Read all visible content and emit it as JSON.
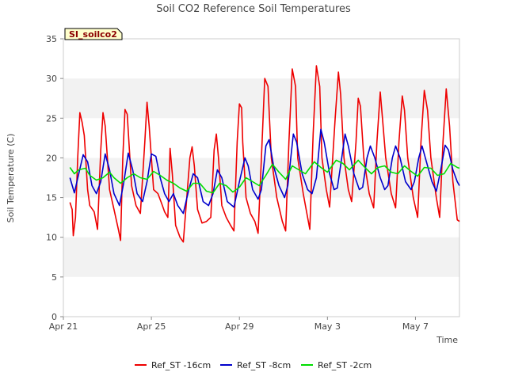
{
  "chart_data": {
    "type": "line",
    "title": "Soil CO2 Reference Soil Temperatures",
    "site_label": "SI_soilco2",
    "xlabel": "Time",
    "ylabel": "Soil Temperature (C)",
    "ylim": [
      0,
      35
    ],
    "yticks": [
      0,
      5,
      10,
      15,
      20,
      25,
      30,
      35
    ],
    "xlim": [
      0,
      18
    ],
    "xticks": [
      {
        "value": 0,
        "label": "Apr 21"
      },
      {
        "value": 4,
        "label": "Apr 25"
      },
      {
        "value": 8,
        "label": "Apr 29"
      },
      {
        "value": 12,
        "label": "May 3"
      },
      {
        "value": 16,
        "label": "May 7"
      }
    ],
    "grid": "horizontal alternating bands",
    "legend_position": "bottom",
    "series": [
      {
        "name": "Ref_ST -16cm",
        "color": "#ee0000",
        "points": [
          [
            0.3,
            14.4
          ],
          [
            0.4,
            13.5
          ],
          [
            0.45,
            10.2
          ],
          [
            0.55,
            12.5
          ],
          [
            0.65,
            20.0
          ],
          [
            0.75,
            25.7
          ],
          [
            0.85,
            24.5
          ],
          [
            0.95,
            22.8
          ],
          [
            1.1,
            16.0
          ],
          [
            1.2,
            14.0
          ],
          [
            1.4,
            13.2
          ],
          [
            1.55,
            11.0
          ],
          [
            1.7,
            21.0
          ],
          [
            1.8,
            25.7
          ],
          [
            1.9,
            24.0
          ],
          [
            2.1,
            16.0
          ],
          [
            2.3,
            13.5
          ],
          [
            2.5,
            11.0
          ],
          [
            2.6,
            9.6
          ],
          [
            2.7,
            20.0
          ],
          [
            2.8,
            26.1
          ],
          [
            2.9,
            25.5
          ],
          [
            3.1,
            16.5
          ],
          [
            3.3,
            14.0
          ],
          [
            3.5,
            13.0
          ],
          [
            3.7,
            22.0
          ],
          [
            3.8,
            27.0
          ],
          [
            3.9,
            24.0
          ],
          [
            4.1,
            16.0
          ],
          [
            4.3,
            15.5
          ],
          [
            4.5,
            14.0
          ],
          [
            4.6,
            13.2
          ],
          [
            4.75,
            12.5
          ],
          [
            4.85,
            21.2
          ],
          [
            4.95,
            18.0
          ],
          [
            5.1,
            11.5
          ],
          [
            5.3,
            10.0
          ],
          [
            5.45,
            9.4
          ],
          [
            5.55,
            13.0
          ],
          [
            5.75,
            20.0
          ],
          [
            5.85,
            21.4
          ],
          [
            5.95,
            19.0
          ],
          [
            6.1,
            13.5
          ],
          [
            6.3,
            11.8
          ],
          [
            6.5,
            12.0
          ],
          [
            6.7,
            12.5
          ],
          [
            6.85,
            21.0
          ],
          [
            6.95,
            23.0
          ],
          [
            7.05,
            20.0
          ],
          [
            7.2,
            14.0
          ],
          [
            7.4,
            12.5
          ],
          [
            7.6,
            11.5
          ],
          [
            7.75,
            10.8
          ],
          [
            7.9,
            22.0
          ],
          [
            8.0,
            26.8
          ],
          [
            8.1,
            26.3
          ],
          [
            8.15,
            22.0
          ],
          [
            8.3,
            15.0
          ],
          [
            8.5,
            13.0
          ],
          [
            8.7,
            12.0
          ],
          [
            8.85,
            10.5
          ],
          [
            9.0,
            20.0
          ],
          [
            9.15,
            30.0
          ],
          [
            9.3,
            29.0
          ],
          [
            9.45,
            20.0
          ],
          [
            9.7,
            15.0
          ],
          [
            9.95,
            12.0
          ],
          [
            10.1,
            10.8
          ],
          [
            10.25,
            22.0
          ],
          [
            10.4,
            31.2
          ],
          [
            10.55,
            29.0
          ],
          [
            10.65,
            20.0
          ],
          [
            10.9,
            15.5
          ],
          [
            11.1,
            12.5
          ],
          [
            11.2,
            11.0
          ],
          [
            11.35,
            23.0
          ],
          [
            11.5,
            31.6
          ],
          [
            11.65,
            29.0
          ],
          [
            11.75,
            20.0
          ],
          [
            11.95,
            16.0
          ],
          [
            12.1,
            13.8
          ],
          [
            12.35,
            25.0
          ],
          [
            12.5,
            30.8
          ],
          [
            12.6,
            28.0
          ],
          [
            12.75,
            20.0
          ],
          [
            12.95,
            16.0
          ],
          [
            13.1,
            14.5
          ],
          [
            13.3,
            22.0
          ],
          [
            13.4,
            27.5
          ],
          [
            13.5,
            26.5
          ],
          [
            13.65,
            20.0
          ],
          [
            13.9,
            15.5
          ],
          [
            14.1,
            13.7
          ],
          [
            14.25,
            22.0
          ],
          [
            14.4,
            28.3
          ],
          [
            14.5,
            25.0
          ],
          [
            14.65,
            20.0
          ],
          [
            14.9,
            15.5
          ],
          [
            15.1,
            13.7
          ],
          [
            15.25,
            22.0
          ],
          [
            15.4,
            27.8
          ],
          [
            15.5,
            26.0
          ],
          [
            15.65,
            20.0
          ],
          [
            15.9,
            15.0
          ],
          [
            16.1,
            12.5
          ],
          [
            16.25,
            22.0
          ],
          [
            16.4,
            28.5
          ],
          [
            16.55,
            26.0
          ],
          [
            16.7,
            20.0
          ],
          [
            16.95,
            15.0
          ],
          [
            17.1,
            12.5
          ],
          [
            17.25,
            22.0
          ],
          [
            17.4,
            28.7
          ],
          [
            17.55,
            24.0
          ],
          [
            17.7,
            17.0
          ],
          [
            17.9,
            12.2
          ],
          [
            18.0,
            12.0
          ]
        ]
      },
      {
        "name": "Ref_ST -8cm",
        "color": "#0000cc",
        "points": [
          [
            0.3,
            17.5
          ],
          [
            0.5,
            15.6
          ],
          [
            0.7,
            18.0
          ],
          [
            0.9,
            20.4
          ],
          [
            1.1,
            19.5
          ],
          [
            1.3,
            16.5
          ],
          [
            1.5,
            15.5
          ],
          [
            1.7,
            17.0
          ],
          [
            1.9,
            20.5
          ],
          [
            2.1,
            18.5
          ],
          [
            2.3,
            15.5
          ],
          [
            2.55,
            14.0
          ],
          [
            2.75,
            17.0
          ],
          [
            2.95,
            20.6
          ],
          [
            3.15,
            18.5
          ],
          [
            3.35,
            15.5
          ],
          [
            3.6,
            14.5
          ],
          [
            3.8,
            17.0
          ],
          [
            4.0,
            20.5
          ],
          [
            4.2,
            20.2
          ],
          [
            4.4,
            17.5
          ],
          [
            4.6,
            15.5
          ],
          [
            4.8,
            14.5
          ],
          [
            5.0,
            15.5
          ],
          [
            5.2,
            14.0
          ],
          [
            5.45,
            13.0
          ],
          [
            5.7,
            16.0
          ],
          [
            5.9,
            18.0
          ],
          [
            6.1,
            17.5
          ],
          [
            6.35,
            14.5
          ],
          [
            6.6,
            14.0
          ],
          [
            6.8,
            15.5
          ],
          [
            7.0,
            18.5
          ],
          [
            7.2,
            17.5
          ],
          [
            7.45,
            14.5
          ],
          [
            7.75,
            13.8
          ],
          [
            8.0,
            17.0
          ],
          [
            8.25,
            20.0
          ],
          [
            8.4,
            19.0
          ],
          [
            8.6,
            16.0
          ],
          [
            8.85,
            14.8
          ],
          [
            9.0,
            16.0
          ],
          [
            9.2,
            21.5
          ],
          [
            9.35,
            22.3
          ],
          [
            9.55,
            19.0
          ],
          [
            9.8,
            16.5
          ],
          [
            10.05,
            15.0
          ],
          [
            10.2,
            16.5
          ],
          [
            10.45,
            23.0
          ],
          [
            10.6,
            22.0
          ],
          [
            10.85,
            18.0
          ],
          [
            11.1,
            16.0
          ],
          [
            11.3,
            15.5
          ],
          [
            11.5,
            17.5
          ],
          [
            11.7,
            23.6
          ],
          [
            11.85,
            22.0
          ],
          [
            12.1,
            18.0
          ],
          [
            12.3,
            16.0
          ],
          [
            12.45,
            16.2
          ],
          [
            12.65,
            20.0
          ],
          [
            12.8,
            23.0
          ],
          [
            12.95,
            21.5
          ],
          [
            13.2,
            18.0
          ],
          [
            13.45,
            16.0
          ],
          [
            13.6,
            16.3
          ],
          [
            13.8,
            20.0
          ],
          [
            13.95,
            21.5
          ],
          [
            14.15,
            20.0
          ],
          [
            14.4,
            17.5
          ],
          [
            14.6,
            16.0
          ],
          [
            14.75,
            16.5
          ],
          [
            14.95,
            20.0
          ],
          [
            15.1,
            21.5
          ],
          [
            15.3,
            20.0
          ],
          [
            15.55,
            17.0
          ],
          [
            15.8,
            16.0
          ],
          [
            15.95,
            17.0
          ],
          [
            16.15,
            20.0
          ],
          [
            16.3,
            21.5
          ],
          [
            16.5,
            19.5
          ],
          [
            16.75,
            17.0
          ],
          [
            16.95,
            15.8
          ],
          [
            17.15,
            18.5
          ],
          [
            17.35,
            21.6
          ],
          [
            17.5,
            21.0
          ],
          [
            17.7,
            18.5
          ],
          [
            17.9,
            17.0
          ],
          [
            18.0,
            16.5
          ]
        ]
      },
      {
        "name": "Ref_ST -2cm",
        "color": "#00dd00",
        "points": [
          [
            0.3,
            18.8
          ],
          [
            0.5,
            18.0
          ],
          [
            0.7,
            18.5
          ],
          [
            1.0,
            18.7
          ],
          [
            1.2,
            17.8
          ],
          [
            1.5,
            17.2
          ],
          [
            1.8,
            17.5
          ],
          [
            2.1,
            18.2
          ],
          [
            2.3,
            17.5
          ],
          [
            2.6,
            16.8
          ],
          [
            2.9,
            17.5
          ],
          [
            3.2,
            18.0
          ],
          [
            3.5,
            17.5
          ],
          [
            3.8,
            17.3
          ],
          [
            4.1,
            18.3
          ],
          [
            4.4,
            17.8
          ],
          [
            4.7,
            17.2
          ],
          [
            5.0,
            16.8
          ],
          [
            5.3,
            16.2
          ],
          [
            5.6,
            15.8
          ],
          [
            5.9,
            16.8
          ],
          [
            6.2,
            16.8
          ],
          [
            6.5,
            15.8
          ],
          [
            6.8,
            15.6
          ],
          [
            7.1,
            16.8
          ],
          [
            7.4,
            16.5
          ],
          [
            7.7,
            15.7
          ],
          [
            8.0,
            16.3
          ],
          [
            8.3,
            17.5
          ],
          [
            8.6,
            17.0
          ],
          [
            8.9,
            16.5
          ],
          [
            9.2,
            17.8
          ],
          [
            9.5,
            19.2
          ],
          [
            9.8,
            18.2
          ],
          [
            10.1,
            17.3
          ],
          [
            10.4,
            19.0
          ],
          [
            10.7,
            18.5
          ],
          [
            11.0,
            18.0
          ],
          [
            11.4,
            19.5
          ],
          [
            11.7,
            18.8
          ],
          [
            12.0,
            18.2
          ],
          [
            12.4,
            19.7
          ],
          [
            12.7,
            19.3
          ],
          [
            13.0,
            18.5
          ],
          [
            13.4,
            19.7
          ],
          [
            13.7,
            18.8
          ],
          [
            14.0,
            18.0
          ],
          [
            14.3,
            18.8
          ],
          [
            14.6,
            19.0
          ],
          [
            14.9,
            18.2
          ],
          [
            15.2,
            18.0
          ],
          [
            15.5,
            19.0
          ],
          [
            15.8,
            18.3
          ],
          [
            16.1,
            17.7
          ],
          [
            16.4,
            18.8
          ],
          [
            16.7,
            18.7
          ],
          [
            17.0,
            17.8
          ],
          [
            17.3,
            18.0
          ],
          [
            17.6,
            19.3
          ],
          [
            17.9,
            18.8
          ],
          [
            18.0,
            18.7
          ]
        ]
      }
    ]
  }
}
